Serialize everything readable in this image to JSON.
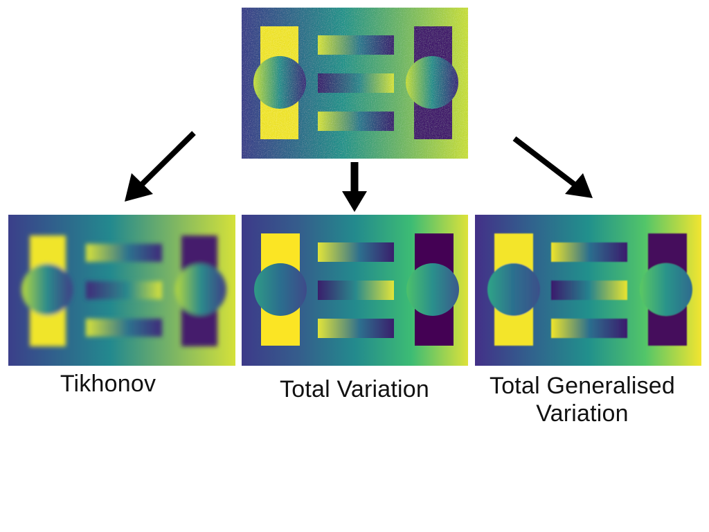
{
  "captions": {
    "tikhonov": "Tikhonov",
    "total_variation": "Total Variation",
    "tgv_line1": "Total Generalised",
    "tgv_line2": "Variation"
  },
  "colormap": {
    "dark": "#440154",
    "blue": "#3b528b",
    "teal": "#21918c",
    "green": "#5ec962",
    "yellow": "#fde725"
  }
}
